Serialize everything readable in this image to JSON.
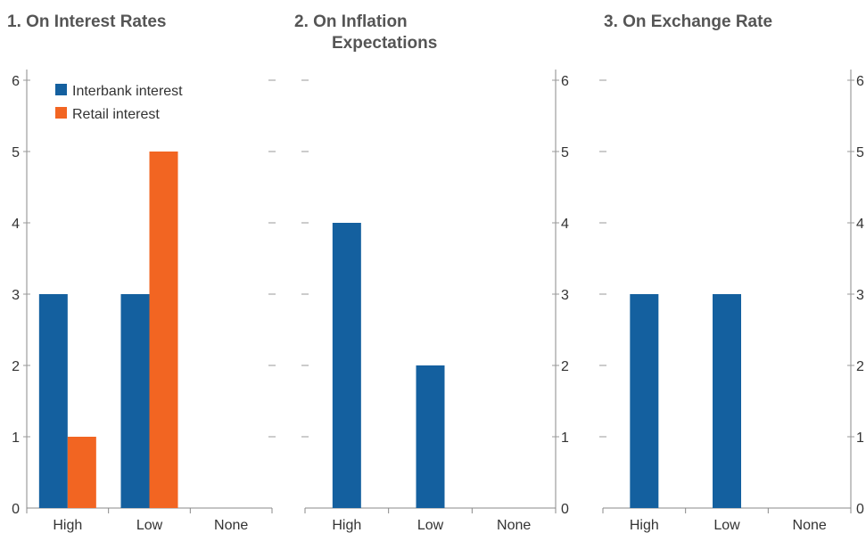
{
  "colors": {
    "interbank": "#14609F",
    "retail": "#F26522",
    "axis": "#888888",
    "title": "#555555",
    "text": "#333333"
  },
  "legend": {
    "placement": "top-left",
    "items": [
      "Interbank interest",
      "Retail interest"
    ]
  },
  "chart_data": [
    {
      "type": "bar",
      "title_lines": [
        "1. On Interest Rates"
      ],
      "categories": [
        "High",
        "Low",
        "None"
      ],
      "ylim": [
        0,
        6
      ],
      "yticks": [
        0,
        1,
        2,
        3,
        4,
        5,
        6
      ],
      "yaxis_side": "left",
      "series": [
        {
          "name": "Interbank interest",
          "values": [
            3,
            3,
            0
          ]
        },
        {
          "name": "Retail interest",
          "values": [
            1,
            5,
            0
          ]
        }
      ]
    },
    {
      "type": "bar",
      "title_lines": [
        "2. On Inflation",
        "Expectations"
      ],
      "categories": [
        "High",
        "Low",
        "None"
      ],
      "ylim": [
        0,
        6
      ],
      "yticks": [
        0,
        1,
        2,
        3,
        4,
        5,
        6
      ],
      "yaxis_side": "right",
      "series": [
        {
          "name": "Interbank interest",
          "values": [
            4,
            2,
            0
          ]
        }
      ]
    },
    {
      "type": "bar",
      "title_lines": [
        "3. On Exchange Rate"
      ],
      "categories": [
        "High",
        "Low",
        "None"
      ],
      "ylim": [
        0,
        6
      ],
      "yticks": [
        0,
        1,
        2,
        3,
        4,
        5,
        6
      ],
      "yaxis_side": "right",
      "series": [
        {
          "name": "Interbank interest",
          "values": [
            3,
            3,
            0
          ]
        }
      ]
    }
  ]
}
